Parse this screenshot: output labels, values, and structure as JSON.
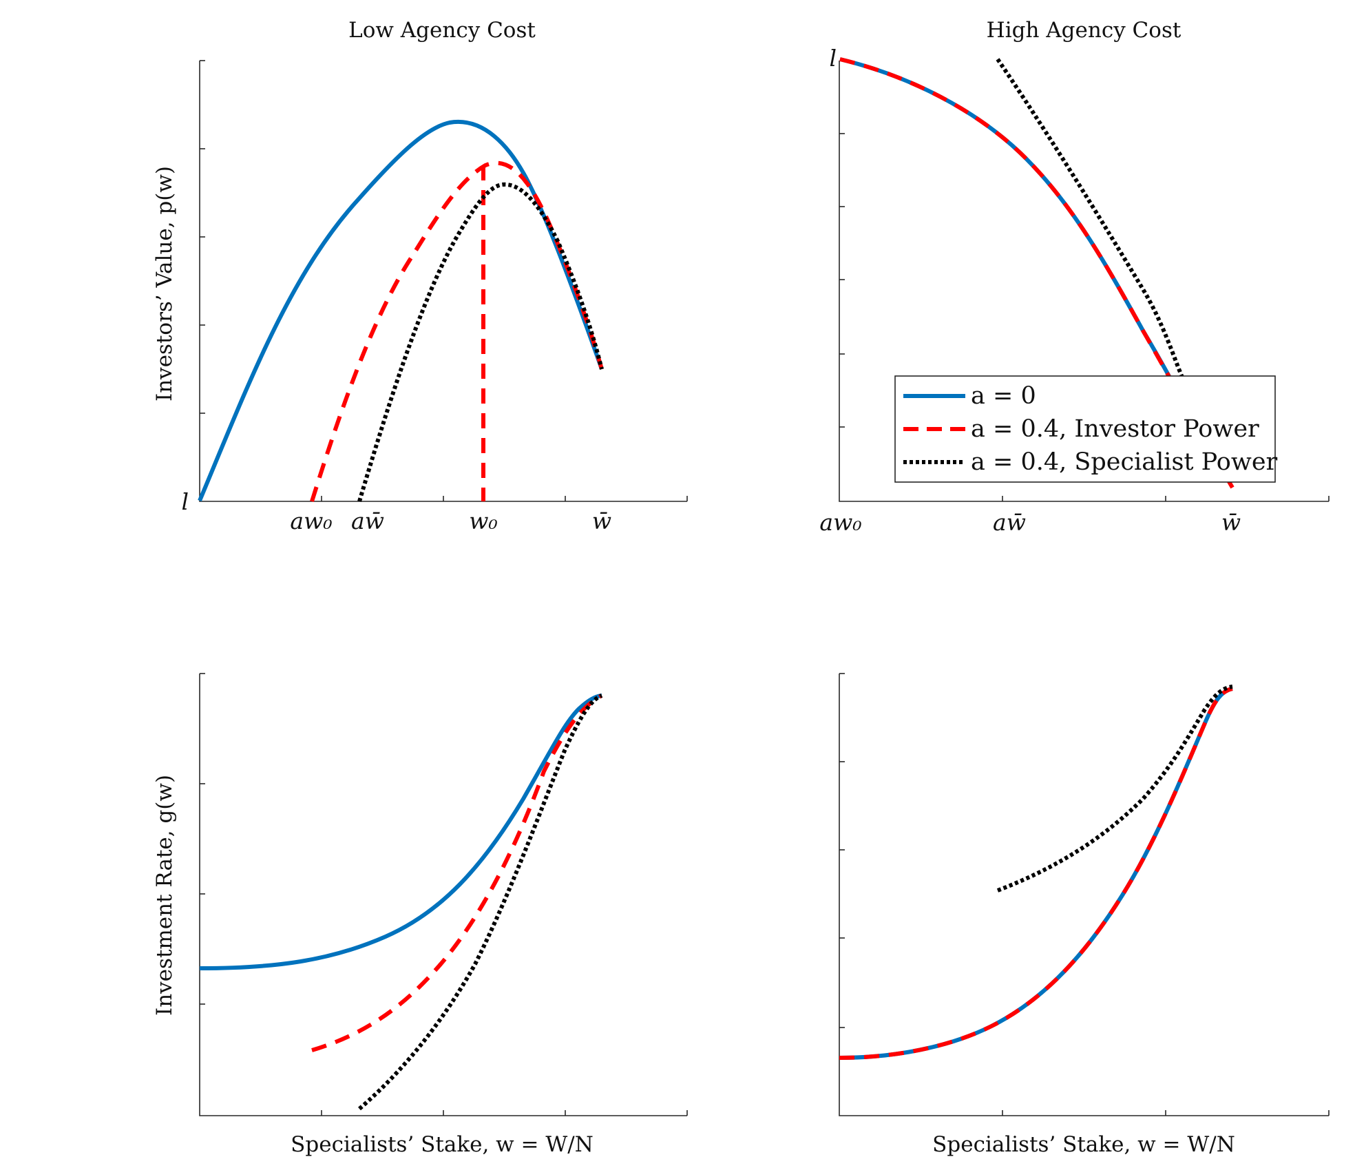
{
  "colors": {
    "a0": "#0072BD",
    "investor": "#FF0000",
    "specialist": "#000000",
    "axis": "#262626"
  },
  "chart_data": [
    {
      "type": "line",
      "title": "Low Agency Cost",
      "ylabel": "Investors’ Value, p(w)",
      "xlabel": "",
      "xlim": [
        0,
        1
      ],
      "ylim": [
        0,
        1
      ],
      "xticks": [
        {
          "x": 0.231,
          "label": "aw₀"
        },
        {
          "x": 0.33,
          "label": "aw̄"
        },
        {
          "x": 0.585,
          "label": "w₀"
        },
        {
          "x": 0.83,
          "label": "w̄"
        }
      ],
      "ylabel_tick": "l",
      "series": [
        {
          "name": "a = 0",
          "x": [
            0,
            0.05,
            0.1,
            0.15,
            0.2,
            0.25,
            0.3,
            0.35,
            0.4,
            0.45,
            0.5,
            0.55,
            0.6,
            0.65,
            0.7,
            0.75,
            0.8,
            0.83
          ],
          "y": [
            0,
            0.18,
            0.345,
            0.49,
            0.615,
            0.715,
            0.795,
            0.85,
            0.88,
            0.86,
            0.86,
            0.86,
            0.82,
            0.74,
            0.62,
            0.5,
            0.38,
            0.3
          ]
        },
        {
          "name": "a = 0.4, Investor Power",
          "x": [
            0.231,
            0.28,
            0.33,
            0.38,
            0.43,
            0.48,
            0.53,
            0.58,
            0.62,
            0.66,
            0.7,
            0.75,
            0.8,
            0.83
          ],
          "y": [
            0,
            0.19,
            0.34,
            0.47,
            0.57,
            0.65,
            0.7,
            0.765,
            0.77,
            0.75,
            0.69,
            0.58,
            0.44,
            0.3
          ]
        },
        {
          "name": "a = 0.4, Investor Power (drop at w₀)",
          "x": [
            0.585,
            0.585
          ],
          "y": [
            0.75,
            0
          ]
        },
        {
          "name": "a = 0.4, Specialist Power",
          "x": [
            0.33,
            0.38,
            0.43,
            0.48,
            0.53,
            0.58,
            0.62,
            0.66,
            0.7,
            0.75,
            0.8,
            0.83
          ],
          "y": [
            0,
            0.16,
            0.32,
            0.46,
            0.58,
            0.67,
            0.72,
            0.705,
            0.65,
            0.56,
            0.42,
            0.3
          ]
        }
      ]
    },
    {
      "type": "line",
      "title": "High Agency Cost",
      "ylabel": "",
      "xlabel": "",
      "xlim": [
        0,
        1
      ],
      "ylim": [
        0,
        1
      ],
      "xticks": [
        {
          "x": 0,
          "label": "aw₀"
        },
        {
          "x": 0.333,
          "label": "aw̄"
        },
        {
          "x": 0.8,
          "label": "w̄"
        }
      ],
      "ylabel_tick": "l",
      "legend": {
        "position": "bottom-right",
        "entries": [
          "a = 0",
          "a = 0.4, Investor Power",
          "a = 0.4, Specialist Power"
        ]
      },
      "series": [
        {
          "name": "a = 0",
          "x": [
            0,
            0.1,
            0.2,
            0.3,
            0.4,
            0.5,
            0.6,
            0.7
          ],
          "y": [
            1,
            0.97,
            0.91,
            0.82,
            0.7,
            0.55,
            0.36,
            0.28
          ]
        },
        {
          "name": "a = 0.4, Investor Power",
          "x": [
            0,
            0.1,
            0.2,
            0.3,
            0.4,
            0.5,
            0.6,
            0.7,
            0.8
          ],
          "y": [
            1,
            0.97,
            0.91,
            0.82,
            0.7,
            0.55,
            0.36,
            0.28,
            0.03
          ]
        },
        {
          "name": "a = 0.4, Specialist Power",
          "x": [
            0.32,
            0.4,
            0.5,
            0.6,
            0.7
          ],
          "y": [
            1,
            0.86,
            0.67,
            0.47,
            0.28
          ]
        }
      ]
    },
    {
      "type": "line",
      "title": "",
      "ylabel": "Investment Rate, g(w)",
      "xlabel": "Specialists’ Stake, w = W/N",
      "xlim": [
        0,
        1
      ],
      "ylim": [
        0,
        1
      ],
      "series": [
        {
          "name": "a = 0",
          "x": [
            0,
            0.1,
            0.2,
            0.3,
            0.4,
            0.5,
            0.6,
            0.7,
            0.75,
            0.8,
            0.83
          ],
          "y": [
            0.33,
            0.336,
            0.355,
            0.4,
            0.48,
            0.62,
            0.79,
            0.93,
            0.97,
            0.95,
            0.95
          ]
        },
        {
          "name": "a = 0.4, Investor Power",
          "x": [
            0.231,
            0.3,
            0.4,
            0.5,
            0.6,
            0.7,
            0.8,
            0.83
          ],
          "y": [
            0.15,
            0.19,
            0.29,
            0.45,
            0.65,
            0.84,
            0.95,
            0.95
          ]
        },
        {
          "name": "a = 0.4, Specialist Power",
          "x": [
            0.33,
            0.4,
            0.5,
            0.6,
            0.7,
            0.8,
            0.83
          ],
          "y": [
            0.015,
            0.1,
            0.29,
            0.52,
            0.74,
            0.92,
            0.95
          ]
        }
      ]
    },
    {
      "type": "line",
      "title": "",
      "ylabel": "",
      "xlabel": "Specialists’ Stake, w = W/N",
      "xlim": [
        0,
        1
      ],
      "ylim": [
        0,
        1
      ],
      "series": [
        {
          "name": "a = 0",
          "x": [
            0,
            0.1,
            0.2,
            0.3,
            0.4,
            0.5,
            0.6,
            0.7,
            0.8
          ],
          "y": [
            0.13,
            0.14,
            0.17,
            0.25,
            0.39,
            0.6,
            0.84,
            0.95,
            0.97
          ]
        },
        {
          "name": "a = 0.4, Investor Power",
          "x": [
            0,
            0.1,
            0.2,
            0.3,
            0.4,
            0.5,
            0.6,
            0.7,
            0.8
          ],
          "y": [
            0.13,
            0.14,
            0.17,
            0.25,
            0.39,
            0.6,
            0.84,
            0.95,
            0.97
          ]
        },
        {
          "name": "a = 0.4, Specialist Power",
          "x": [
            0.32,
            0.4,
            0.5,
            0.6,
            0.7,
            0.75
          ],
          "y": [
            0.51,
            0.56,
            0.64,
            0.76,
            0.91,
            0.98
          ]
        }
      ]
    }
  ]
}
